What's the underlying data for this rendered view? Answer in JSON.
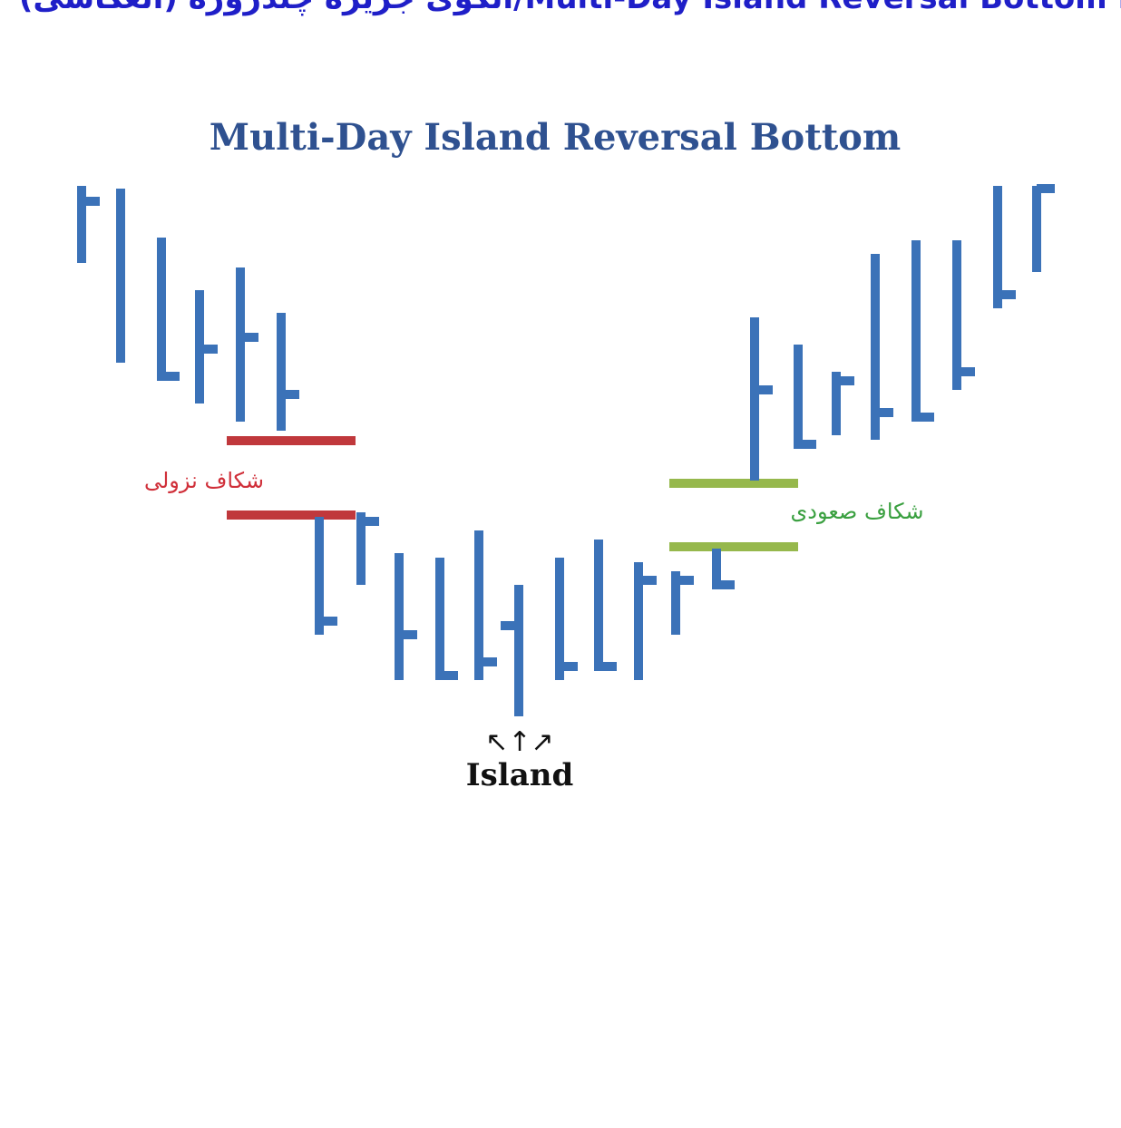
{
  "header": {
    "title": "الگوی جزیره چندروزه (انعکاسی)/Multi-Day Island Reversal Bottom Pattern"
  },
  "diagram": {
    "title": "Multi-Day Island Reversal Bottom",
    "gap_down_label": "شکاف نزولی",
    "gap_up_label": "شکاف صعودی",
    "arrows": "↖↑↗",
    "island_label": "Island"
  }
}
